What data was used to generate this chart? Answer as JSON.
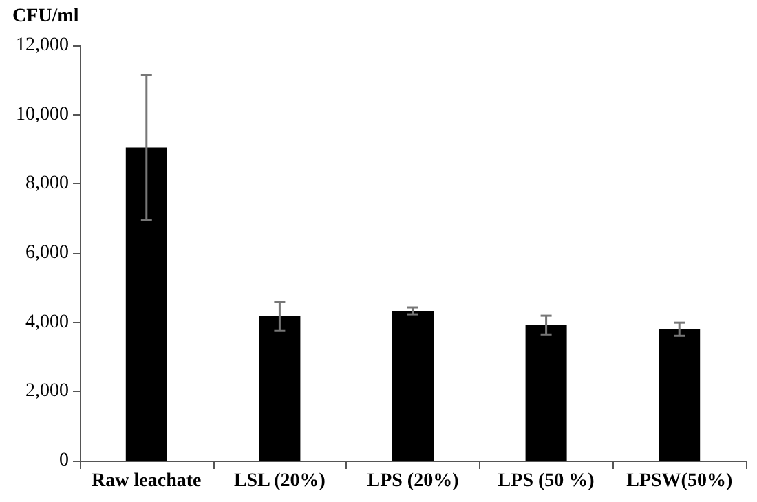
{
  "chart_data": {
    "type": "bar",
    "ylabel": "CFU/ml",
    "categories": [
      "Raw leachate",
      "LSL (20%)",
      "LPS (20%)",
      "LPS (50 %)",
      "LPSW(50%)"
    ],
    "values": [
      9050,
      4170,
      4330,
      3920,
      3800
    ],
    "errors": [
      2100,
      420,
      100,
      270,
      190
    ],
    "color": "#000000",
    "ylim": [
      0,
      12000
    ],
    "yticks": [
      {
        "value": 0,
        "label": "0"
      },
      {
        "value": 2000,
        "label": "2,000"
      },
      {
        "value": 4000,
        "label": "4,000"
      },
      {
        "value": 6000,
        "label": "6,000"
      },
      {
        "value": 8000,
        "label": "8,000"
      },
      {
        "value": 10000,
        "label": "10,000"
      },
      {
        "value": 12000,
        "label": "12,000"
      }
    ],
    "grid": false
  }
}
